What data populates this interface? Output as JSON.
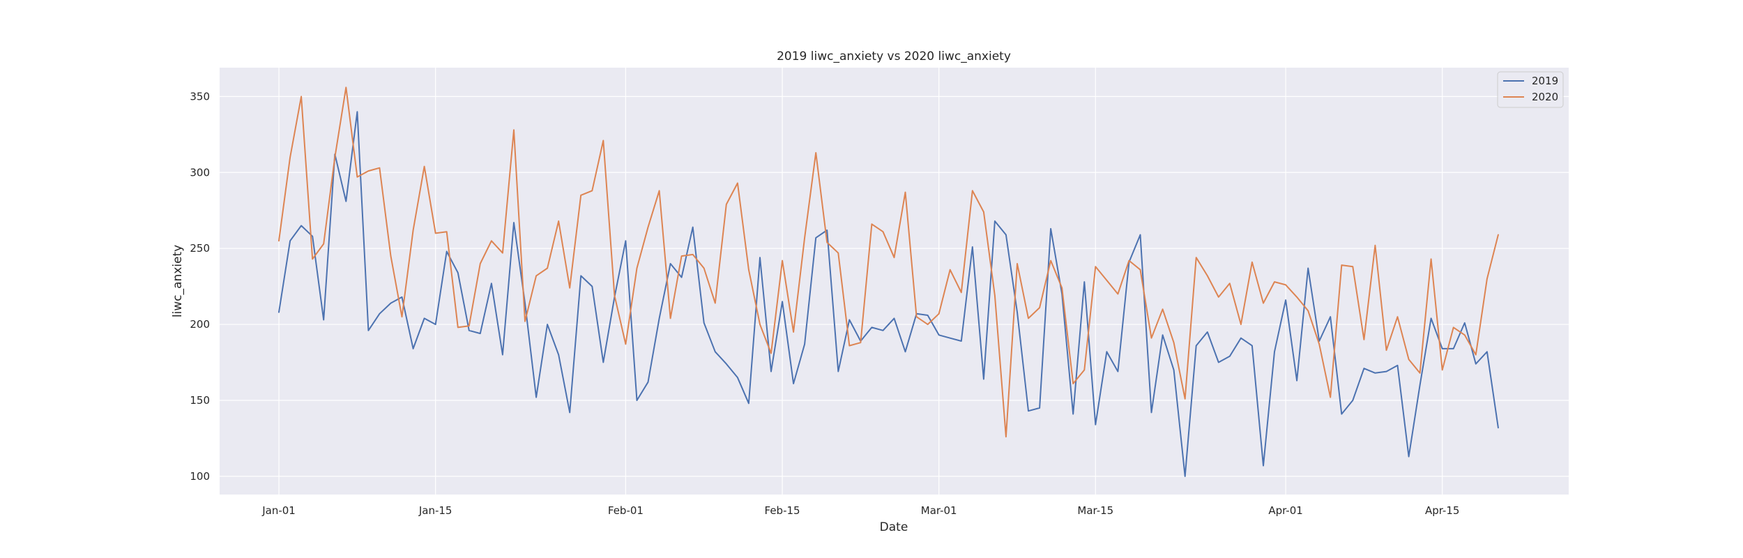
{
  "chart_data": {
    "type": "line",
    "title": "2019 liwc_anxiety vs 2020 liwc_anxiety",
    "xlabel": "Date",
    "ylabel": "liwc_anxiety",
    "x_start": "Jan-01",
    "x_ticks": [
      "Jan-01",
      "Jan-15",
      "Feb-01",
      "Feb-15",
      "Mar-01",
      "Mar-15",
      "Apr-01",
      "Apr-15"
    ],
    "x_tick_days": [
      0,
      14,
      31,
      45,
      59,
      73,
      90,
      104
    ],
    "xlim": [
      -5.3,
      115.3
    ],
    "y_ticks": [
      100,
      150,
      200,
      250,
      300,
      350
    ],
    "ylim": [
      88,
      369
    ],
    "grid": true,
    "legend_position": "top-right",
    "background": "#eaeaf2",
    "series": [
      {
        "name": "2019",
        "color": "#4c72b0",
        "values": [
          208,
          255,
          265,
          258,
          203,
          312,
          281,
          340,
          196,
          207,
          214,
          218,
          184,
          204,
          200,
          248,
          234,
          196,
          194,
          227,
          180,
          267,
          214,
          152,
          200,
          180,
          142,
          232,
          225,
          175,
          218,
          255,
          150,
          162,
          204,
          240,
          231,
          264,
          201,
          182,
          174,
          165,
          148,
          244,
          169,
          215,
          161,
          187,
          257,
          262,
          169,
          203,
          189,
          198,
          196,
          204,
          182,
          207,
          206,
          193,
          191,
          189,
          251,
          164,
          268,
          259,
          208,
          143,
          145,
          263,
          220,
          141,
          228,
          134,
          182,
          169,
          241,
          259,
          142,
          193,
          170,
          100,
          186,
          195,
          175,
          179,
          191,
          186,
          107,
          182,
          216,
          163,
          237,
          189,
          205,
          141,
          150,
          171,
          168,
          169,
          173,
          113,
          160,
          204,
          184,
          184,
          201,
          174,
          182,
          132
        ]
      },
      {
        "name": "2020",
        "color": "#dd8452",
        "values": [
          255,
          310,
          350,
          243,
          253,
          310,
          356,
          297,
          301,
          303,
          245,
          205,
          262,
          304,
          260,
          261,
          198,
          199,
          240,
          255,
          247,
          328,
          202,
          232,
          237,
          268,
          224,
          285,
          288,
          321,
          219,
          187,
          237,
          264,
          288,
          204,
          245,
          246,
          237,
          214,
          279,
          293,
          236,
          200,
          181,
          242,
          195,
          257,
          313,
          254,
          247,
          186,
          188,
          266,
          261,
          244,
          287,
          205,
          200,
          207,
          236,
          221,
          288,
          274,
          219,
          126,
          240,
          204,
          211,
          242,
          224,
          161,
          170,
          238,
          229,
          220,
          242,
          236,
          191,
          210,
          188,
          151,
          244,
          232,
          218,
          227,
          200,
          241,
          214,
          228,
          226,
          218,
          209,
          187,
          152,
          239,
          238,
          190,
          252,
          183,
          205,
          177,
          168,
          243,
          170,
          198,
          193,
          180,
          230,
          259
        ]
      }
    ]
  }
}
